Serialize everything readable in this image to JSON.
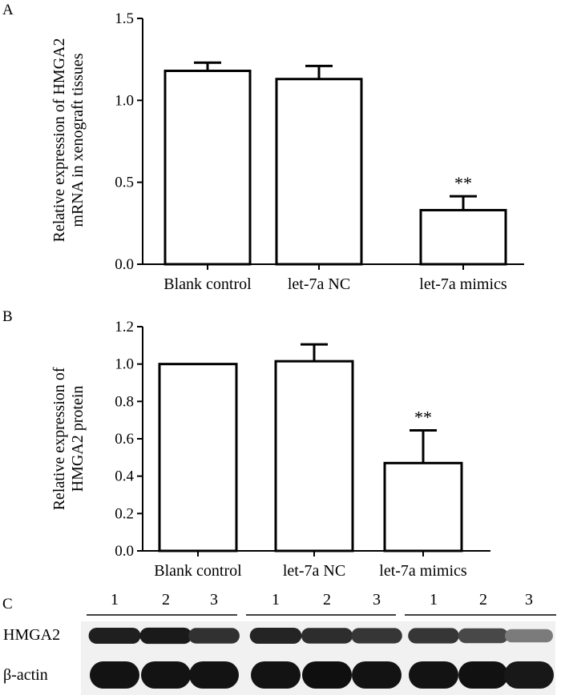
{
  "panels": {
    "a": "A",
    "b": "B",
    "c": "C"
  },
  "chart_data": [
    {
      "type": "bar",
      "panel": "A",
      "title": "",
      "ylabel_lines": [
        "Relative expression of HMGA2",
        "mRNA in xenograft tissues"
      ],
      "xlabel": "",
      "categories": [
        "Blank control",
        "let-7a NC",
        "let-7a mimics"
      ],
      "values": [
        1.18,
        1.13,
        0.33
      ],
      "errors": [
        0.05,
        0.08,
        0.085
      ],
      "significance": [
        "",
        "",
        "**"
      ],
      "ylim": [
        0,
        1.5
      ],
      "yticks": [
        0,
        0.5,
        1.0,
        1.5
      ],
      "ytick_labels": [
        "0.0",
        "0.5",
        "1.0",
        "1.5"
      ],
      "grid": false
    },
    {
      "type": "bar",
      "panel": "B",
      "title": "",
      "ylabel_lines": [
        "Relative expression of",
        "HMGA2 protein"
      ],
      "xlabel": "",
      "categories": [
        "Blank control",
        "let-7a NC",
        "let-7a mimics"
      ],
      "values": [
        1.0,
        1.015,
        0.47
      ],
      "errors": [
        0,
        0.09,
        0.175
      ],
      "significance": [
        "",
        "",
        "**"
      ],
      "ylim": [
        0,
        1.2
      ],
      "yticks": [
        0,
        0.2,
        0.4,
        0.6,
        0.8,
        1.0,
        1.2
      ],
      "ytick_labels": [
        "0.0",
        "0.2",
        "0.4",
        "0.6",
        "0.8",
        "1.0",
        "1.2"
      ],
      "grid": false
    }
  ],
  "western_blot": {
    "lane_numbers": [
      "1",
      "2",
      "3",
      "1",
      "2",
      "3",
      "1",
      "2",
      "3"
    ],
    "rows": [
      {
        "label": "HMGA2",
        "intensities": [
          0.9,
          0.92,
          0.82,
          0.88,
          0.84,
          0.8,
          0.8,
          0.72,
          0.5
        ]
      },
      {
        "label": "β-actin",
        "intensities": [
          0.95,
          0.95,
          0.95,
          0.95,
          0.97,
          0.95,
          0.95,
          0.96,
          0.93
        ]
      }
    ]
  }
}
